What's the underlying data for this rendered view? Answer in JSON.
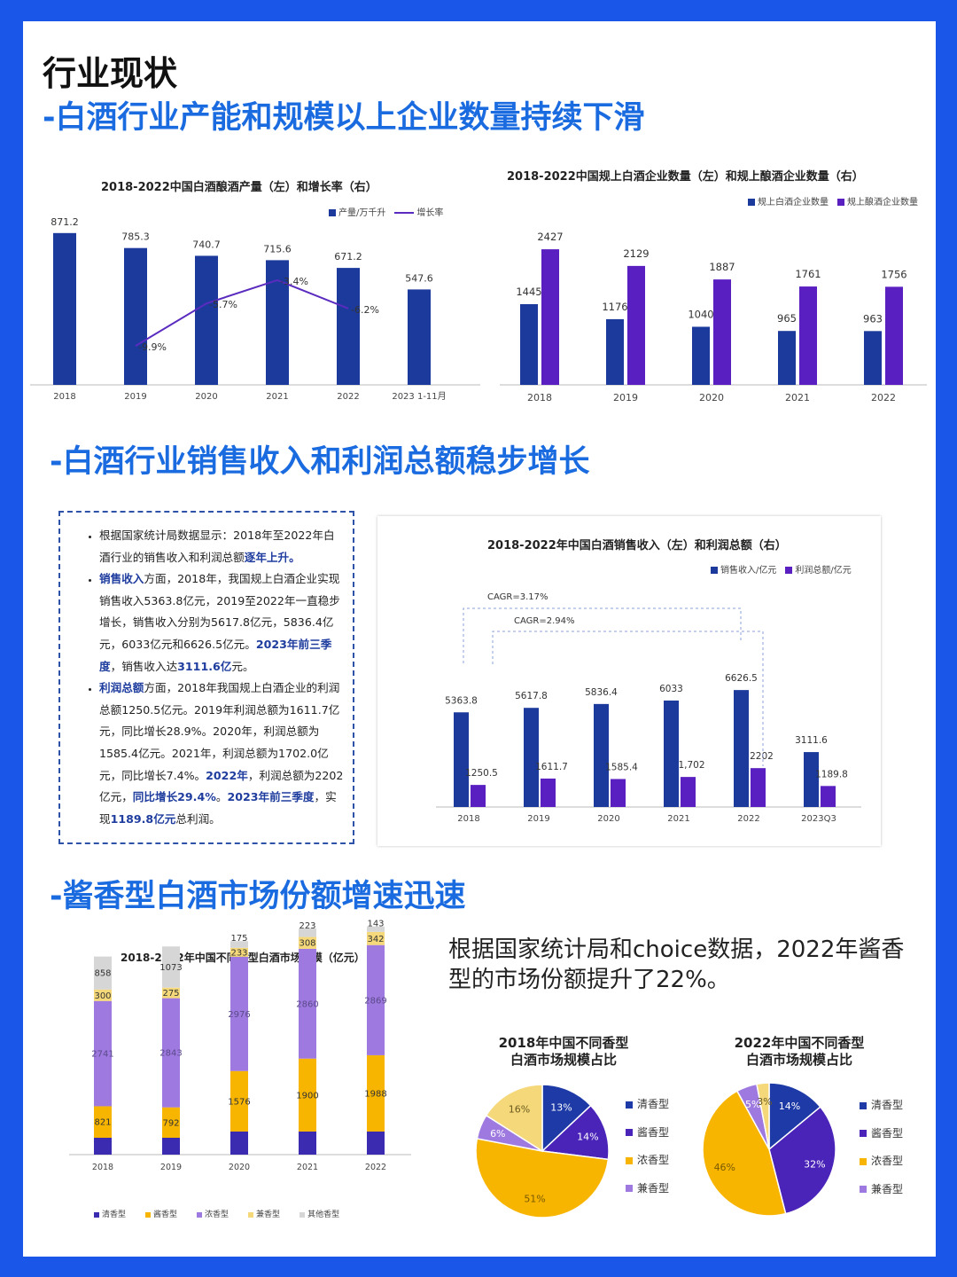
{
  "heading": "行业现状",
  "sections": {
    "s1": "-白酒行业产能和规模以上企业数量持续下滑",
    "s2": "-白酒行业销售收入和利润总额稳步增长",
    "s3": "-酱香型白酒市场份额增速迅速"
  },
  "colors": {
    "dark_blue": "#1b3a9c",
    "purple": "#5a1fc0",
    "line": "#5a2bbf",
    "orange": "#f7b500",
    "light_purple": "#9e79e0",
    "pale_yellow": "#f5d879",
    "grey": "#d6d6d6",
    "pie_blue": "#1d3aa6",
    "pie_purple": "#4a23b8"
  },
  "text_box": {
    "p1_a": "根据国家统计局数据显示：2018年至2022年白酒行业的销售收入和利润总额",
    "p1_b": "逐年上升。",
    "p2_a": "销售收入",
    "p2_b": "方面，2018年，我国规上白酒企业实现销售收入5363.8亿元，2019至2022年一直稳步增长，销售收入分别为5617.8亿元，5836.4亿元，6033亿元和6626.5亿元。",
    "p2_c": "2023年前三季度",
    "p2_d": "，销售收入达",
    "p2_e": "3111.6亿",
    "p2_f": "元。",
    "p3_a": "利润总额",
    "p3_b": "方面，2018年我国规上白酒企业的利润总额1250.5亿元。2019年利润总额为1611.7亿元，同比增长28.9%。2020年，利润总额为1585.4亿元。2021年，利润总额为1702.0亿元，同比增长7.4%。",
    "p3_c": "2022年",
    "p3_d": "，利润总额为2202亿元，",
    "p3_e": "同比增长29.4%",
    "p3_f": "。",
    "p3_g": "2023年前三季度",
    "p3_h": "，实现",
    "p3_i": "1189.8亿元",
    "p3_j": "总利润。"
  },
  "pie_note": "根据国家统计局和choice数据，2022年酱香型的市场份额提升了22%。",
  "chart_data": [
    {
      "type": "bar",
      "title": "2018-2022中国白酒酿酒产量（左）和增长率（右）",
      "categories": [
        "2018",
        "2019",
        "2020",
        "2021",
        "2022",
        "2023 1-11月"
      ],
      "series": [
        {
          "name": "产量/万千升",
          "type": "bar",
          "values": [
            871.2,
            785.3,
            740.7,
            715.6,
            671.2,
            547.6
          ],
          "labels": [
            "871.2",
            "785.3",
            "740.7",
            "715.6",
            "671.2",
            "547.6"
          ]
        },
        {
          "name": "增长率",
          "type": "line",
          "values": [
            null,
            -9.9,
            -5.7,
            -3.4,
            -6.2,
            null
          ],
          "labels": [
            "",
            "-9.9%",
            "-5.7%",
            "-3.4%",
            "-6.2%",
            ""
          ]
        }
      ],
      "legend_position": "top-right"
    },
    {
      "type": "bar",
      "title": "2018-2022中国规上白酒企业数量（左）和规上酿酒企业数量（右）",
      "categories": [
        "2018",
        "2019",
        "2020",
        "2021",
        "2022"
      ],
      "series": [
        {
          "name": "规上白酒企业数量",
          "values": [
            1445,
            1176,
            1040,
            965,
            963
          ],
          "labels": [
            "1445",
            "1176",
            "1040",
            "965",
            "963"
          ]
        },
        {
          "name": "规上酿酒企业数量",
          "values": [
            2427,
            2129,
            1887,
            1761,
            1756
          ],
          "labels": [
            "2427",
            "2129",
            "1887",
            "1761",
            "1756"
          ]
        }
      ],
      "legend_position": "top-right"
    },
    {
      "type": "bar",
      "title": "2018-2022年中国白酒销售收入（左）和利润总额（右）",
      "categories": [
        "2018",
        "2019",
        "2020",
        "2021",
        "2022",
        "2023Q3"
      ],
      "series": [
        {
          "name": "销售收入/亿元",
          "values": [
            5363.8,
            5617.8,
            5836.4,
            6033,
            6626.5,
            3111.6
          ],
          "labels": [
            "5363.8",
            "5617.8",
            "5836.4",
            "6033",
            "6626.5",
            "3111.6"
          ]
        },
        {
          "name": "利润总额/亿元",
          "values": [
            1250.5,
            1611.7,
            1585.4,
            1702,
            2202,
            1189.8
          ],
          "labels": [
            "1250.5",
            "1611.7",
            "1585.4",
            "1,702",
            "2202",
            "1189.8"
          ]
        }
      ],
      "annotations": [
        "CAGR=3.17%",
        "CAGR=2.94%"
      ],
      "legend_position": "top-right"
    },
    {
      "type": "bar",
      "stacked": true,
      "title": "2018-2022年中国不同香型白酒市场规模（亿元）",
      "categories": [
        "2018",
        "2019",
        "2020",
        "2021",
        "2022"
      ],
      "series": [
        {
          "name": "清香型",
          "values": [
            null,
            null,
            null,
            null,
            null
          ],
          "labels": [
            "",
            "",
            "",
            "",
            ""
          ]
        },
        {
          "name": "酱香型",
          "values": [
            821,
            792,
            1576,
            1900,
            1988
          ],
          "labels": [
            "821",
            "792",
            "1576",
            "1900",
            "1988"
          ]
        },
        {
          "name": "浓香型",
          "values": [
            2741,
            2843,
            2976,
            2860,
            2869
          ],
          "labels": [
            "2741",
            "2843",
            "2976",
            "2860",
            "2869"
          ]
        },
        {
          "name": "兼香型",
          "values": [
            300,
            275,
            233,
            308,
            342
          ],
          "labels": [
            "300",
            "275",
            "233",
            "308",
            "342"
          ]
        },
        {
          "name": "其他香型",
          "values": [
            858,
            1073,
            175,
            223,
            143
          ],
          "labels": [
            "858",
            "1073",
            "175",
            "223",
            "143"
          ]
        }
      ],
      "legend_position": "bottom"
    },
    {
      "type": "pie",
      "title": "2018年中国不同香型\n白酒市场规模占比",
      "labels": [
        "清香型",
        "酱香型",
        "浓香型",
        "兼香型",
        ""
      ],
      "values": [
        13,
        14,
        51,
        6,
        16
      ],
      "value_labels": [
        "13%",
        "14%",
        "51%",
        "6%",
        "16%"
      ],
      "legend": [
        "清香型",
        "酱香型",
        "浓香型",
        "兼香型"
      ]
    },
    {
      "type": "pie",
      "title": "2022年中国不同香型\n白酒市场规模占比",
      "labels": [
        "清香型",
        "酱香型",
        "浓香型",
        "兼香型",
        ""
      ],
      "values": [
        14,
        32,
        46,
        5,
        3
      ],
      "value_labels": [
        "14%",
        "32%",
        "46%",
        "5%",
        "3%"
      ],
      "legend": [
        "清香型",
        "酱香型",
        "浓香型",
        "兼香型"
      ]
    }
  ]
}
